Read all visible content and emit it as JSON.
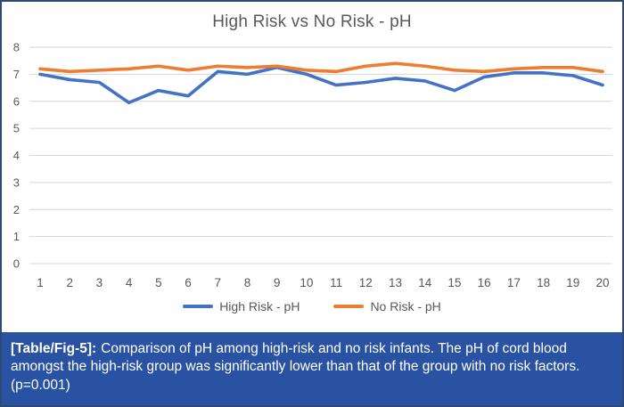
{
  "figure": {
    "caption_label": "[Table/Fig-5]:",
    "caption_text": "Comparison of pH among high-risk and no risk infants. The pH of cord blood amongst the high-risk group was significantly lower than that of the group with no risk factors. (p=0.001)"
  },
  "colors": {
    "axis_text": "#595959",
    "title_text": "#595959",
    "gridline": "#d6d6d6",
    "panel_border": "#2e4a73",
    "caption_bg": "#2a52a2",
    "caption_text": "#ffffff",
    "high_risk_blue": "#4472C4",
    "no_risk_orange": "#ED7D31"
  },
  "chart_data": {
    "type": "line",
    "title": "High Risk vs No Risk - pH",
    "xlabel": "",
    "ylabel": "",
    "x": [
      1,
      2,
      3,
      4,
      5,
      6,
      7,
      8,
      9,
      10,
      11,
      12,
      13,
      14,
      15,
      16,
      17,
      18,
      19,
      20
    ],
    "y_ticks": [
      0,
      1,
      2,
      3,
      4,
      5,
      6,
      7,
      8
    ],
    "ylim": [
      0,
      8
    ],
    "grid": "horizontal",
    "legend_position": "bottom",
    "series": [
      {
        "name": "High Risk - pH",
        "color": "#4472C4",
        "values": [
          7.0,
          6.8,
          6.7,
          5.95,
          6.4,
          6.2,
          7.1,
          7.0,
          7.25,
          7.0,
          6.6,
          6.7,
          6.85,
          6.75,
          6.4,
          6.9,
          7.05,
          7.05,
          6.95,
          6.6
        ]
      },
      {
        "name": "No Risk - pH",
        "color": "#ED7D31",
        "values": [
          7.2,
          7.1,
          7.15,
          7.2,
          7.3,
          7.15,
          7.3,
          7.25,
          7.3,
          7.15,
          7.1,
          7.3,
          7.4,
          7.3,
          7.15,
          7.1,
          7.2,
          7.25,
          7.25,
          7.1
        ]
      }
    ]
  }
}
